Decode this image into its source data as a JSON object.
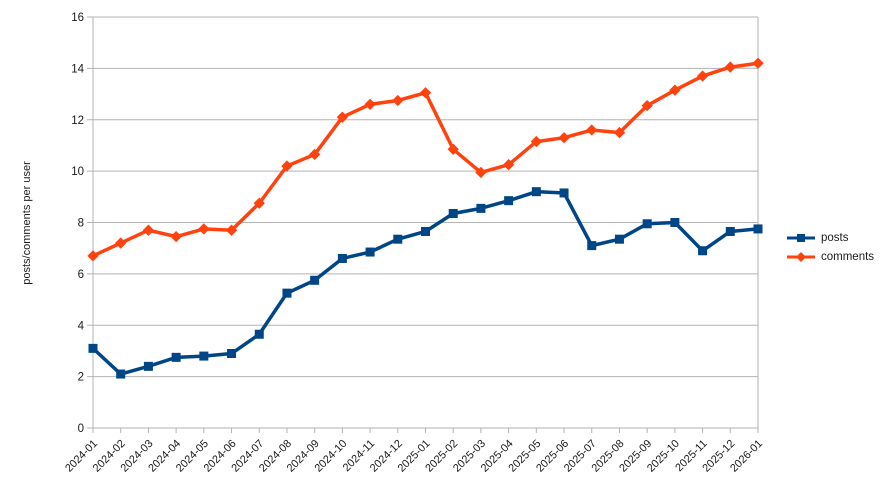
{
  "chart_data": {
    "type": "line",
    "title": "",
    "xlabel": "",
    "ylabel": "posts/comments per user",
    "ylim": [
      0,
      16
    ],
    "ytick_step": 2,
    "grid": true,
    "legend_position": "right",
    "grid_color": "#b3b3b3",
    "text_color": "#1a1a1a",
    "categories": [
      "2024-01",
      "2024-02",
      "2024-03",
      "2024-04",
      "2024-05",
      "2024-06",
      "2024-07",
      "2024-08",
      "2024-09",
      "2024-10",
      "2024-11",
      "2024-12",
      "2025-01",
      "2025-02",
      "2025-03",
      "2025-04",
      "2025-05",
      "2025-06",
      "2025-07",
      "2025-08",
      "2025-09",
      "2025-10",
      "2025-11",
      "2025-12",
      "2026-01"
    ],
    "series": [
      {
        "name": "posts",
        "color": "#004586",
        "marker": "square",
        "values": [
          3.1,
          2.1,
          2.4,
          2.75,
          2.8,
          2.9,
          3.65,
          5.25,
          5.75,
          6.6,
          6.85,
          7.35,
          7.65,
          8.35,
          8.55,
          8.85,
          9.2,
          9.15,
          7.1,
          7.35,
          7.95,
          8.0,
          6.9,
          7.65,
          7.75
        ]
      },
      {
        "name": "comments",
        "color": "#ff420e",
        "marker": "diamond",
        "values": [
          6.7,
          7.2,
          7.7,
          7.45,
          7.75,
          7.7,
          8.75,
          10.2,
          10.65,
          12.1,
          12.6,
          12.75,
          13.05,
          10.85,
          9.95,
          10.25,
          11.15,
          11.3,
          11.6,
          11.5,
          12.55,
          13.15,
          13.7,
          14.05,
          14.2
        ]
      }
    ]
  }
}
